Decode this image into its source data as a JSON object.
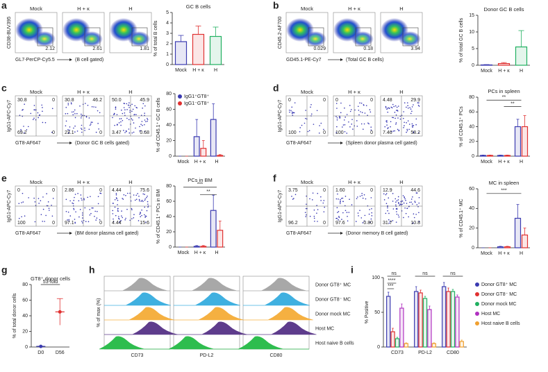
{
  "panels": {
    "a": {
      "label": "a",
      "flow": {
        "kind": "density",
        "ylabel": "CD38-BUV395",
        "xlabel": "GL7-PerCP-Cy5.5",
        "gate_note": "(B cell gated)",
        "plots": [
          {
            "title": "Mock",
            "gates": [
              "2.12"
            ]
          },
          {
            "title": "H + κ",
            "gates": [
              "2.61"
            ]
          },
          {
            "title": "H",
            "gates": [
              "1.81"
            ]
          }
        ]
      },
      "chart": {
        "title": "GC B cells",
        "ylabel": "% of total B cells",
        "categories": [
          "Mock",
          "H + κ",
          "H"
        ],
        "series": [
          {
            "values": [
              2.2,
              2.9,
              2.7
            ],
            "errors": [
              0.6,
              0.8,
              0.9
            ],
            "colors": [
              "#3a3ab0",
              "#e03030",
              "#20b060"
            ]
          }
        ],
        "ylim": [
          0,
          5
        ],
        "yticks": [
          0,
          1,
          2,
          3,
          4,
          5
        ],
        "annotations": []
      }
    },
    "b": {
      "label": "b",
      "flow": {
        "kind": "density",
        "ylabel": "CD45.2-AF700",
        "xlabel": "GD45.1-PE-Cy7",
        "gate_note": "(Total GC B cells)",
        "plots": [
          {
            "title": "Mock",
            "gates": [
              "0.029"
            ]
          },
          {
            "title": "H + κ",
            "gates": [
              "0.18"
            ]
          },
          {
            "title": "H",
            "gates": [
              "3.94"
            ]
          }
        ]
      },
      "chart": {
        "title": "Donor GC B cells",
        "ylabel": "% of total GC B cells",
        "categories": [
          "Mock",
          "H + κ",
          "H"
        ],
        "series": [
          {
            "values": [
              0.1,
              0.5,
              5.5
            ],
            "errors": [
              0.1,
              0.3,
              4.9
            ],
            "colors": [
              "#3a3ab0",
              "#e03030",
              "#20b060"
            ]
          }
        ],
        "ylim": [
          0,
          15
        ],
        "yticks": [
          0,
          5,
          10,
          15
        ],
        "annotations": []
      }
    },
    "c": {
      "label": "c",
      "flow": {
        "kind": "quad",
        "ylabel": "IgG1-AFC-Cy7",
        "xlabel": "GT8-AF647",
        "gate_note": "(Donor GC B cells gated)",
        "plots": [
          {
            "title": "Mock",
            "gates": [
              "30.8",
              "0",
              "69.2",
              "0"
            ]
          },
          {
            "title": "H + κ",
            "gates": [
              "30.8",
              "46.2",
              "23.1",
              "0"
            ]
          },
          {
            "title": "H",
            "gates": [
              "50.0",
              "45.9",
              "3.47",
              "0.68"
            ]
          }
        ]
      },
      "chart": {
        "ylabel": "% of CD45.1⁺ GC B cells",
        "categories": [
          "Mock",
          "H + κ",
          "H"
        ],
        "series": [
          {
            "name": "IgG1⁺GT8⁺",
            "color": "#3a3ab0",
            "values": [
              0,
              25,
              47
            ],
            "errors": [
              0,
              22,
              20
            ]
          },
          {
            "name": "IgG1⁻GT8⁺",
            "color": "#e03030",
            "values": [
              0,
              10,
              1
            ],
            "errors": [
              0,
              10,
              1
            ]
          }
        ],
        "ylim": [
          0,
          80
        ],
        "yticks": [
          0,
          20,
          40,
          60,
          80
        ],
        "annotations": []
      }
    },
    "d": {
      "label": "d",
      "flow": {
        "kind": "quad",
        "ylabel": "IgG1-APC-Cy7",
        "xlabel": "GT8-AF647",
        "gate_note": "(Spleen donor plasma cell gated)",
        "plots": [
          {
            "title": "Mock",
            "gates": [
              "0",
              "0",
              "100",
              "0"
            ]
          },
          {
            "title": "H + κ",
            "gates": [
              "0",
              "0",
              "100",
              "0"
            ]
          },
          {
            "title": "H",
            "gates": [
              "4.48",
              "29.9",
              "7.46",
              "58.2"
            ]
          }
        ]
      },
      "chart": {
        "title": "PCs in spleen",
        "ylabel": "% of CD45.1⁺ PCs",
        "categories": [
          "Mock",
          "H + κ",
          "H"
        ],
        "series": [
          {
            "color": "#3a3ab0",
            "values": [
              1,
              1,
              40
            ],
            "errors": [
              0.5,
              0.5,
              10
            ]
          },
          {
            "color": "#e03030",
            "values": [
              1,
              1,
              40
            ],
            "errors": [
              0.5,
              0.5,
              15
            ]
          }
        ],
        "ylim": [
          0,
          80
        ],
        "yticks": [
          0,
          20,
          40,
          60,
          80
        ],
        "annotations": [
          "**",
          "**"
        ]
      }
    },
    "e": {
      "label": "e",
      "flow": {
        "kind": "quad",
        "ylabel": "IgG1-APC-Cy7",
        "xlabel": "GT8-AF647",
        "gate_note": "(BM donor plasma cell gated)",
        "plots": [
          {
            "title": "Mock",
            "gates": [
              "0",
              "0",
              "100",
              "0"
            ]
          },
          {
            "title": "H + κ",
            "gates": [
              "2.86",
              "0",
              "97.1",
              "0"
            ]
          },
          {
            "title": "H",
            "gates": [
              "4.44",
              "75.6",
              "4.44",
              "15.6"
            ]
          }
        ]
      },
      "chart": {
        "title": "PCs in BM",
        "ylabel": "% of CD45.1⁺ PCs in BM",
        "categories": [
          "Mock",
          "H + κ",
          "H"
        ],
        "series": [
          {
            "color": "#3a3ab0",
            "values": [
              0,
              1,
              48
            ],
            "errors": [
              0,
              1,
              20
            ]
          },
          {
            "color": "#e03030",
            "values": [
              0,
              1,
              22
            ],
            "errors": [
              0,
              1,
              12
            ]
          }
        ],
        "ylim": [
          0,
          80
        ],
        "yticks": [
          0,
          20,
          40,
          60,
          80
        ],
        "annotations": [
          "***",
          "**"
        ]
      }
    },
    "f": {
      "label": "f",
      "flow": {
        "kind": "quad",
        "ylabel": "IgG1-APC-Cy7",
        "xlabel": "GT8-AF647",
        "gate_note": "(Donor memory B cell gated)",
        "plots": [
          {
            "title": "Mock",
            "gates": [
              "3.75",
              "0",
              "96.2",
              "0"
            ]
          },
          {
            "title": "H + κ",
            "gates": [
              "1.60",
              "0",
              "97.6",
              "0.80"
            ]
          },
          {
            "title": "H",
            "gates": [
              "12.9",
              "44.6",
              "31.7",
              "10.8"
            ]
          }
        ]
      },
      "chart": {
        "title": "MC in spleen",
        "ylabel": "% of CD45.1⁺ MC",
        "categories": [
          "Mock",
          "H + κ",
          "H"
        ],
        "series": [
          {
            "color": "#3a3ab0",
            "values": [
              0,
              1,
              30
            ],
            "errors": [
              0,
              0.5,
              14
            ]
          },
          {
            "color": "#e03030",
            "values": [
              0,
              1,
              13
            ],
            "errors": [
              0,
              0.5,
              7
            ]
          }
        ],
        "ylim": [
          0,
          60
        ],
        "yticks": [
          0,
          20,
          40,
          60
        ],
        "annotations": [
          "***"
        ]
      }
    },
    "g": {
      "label": "g",
      "chart": {
        "title": "GT8⁺ donor cells",
        "ylabel": "% of total donor cells",
        "categories": [
          "D0",
          "D56"
        ],
        "series": [
          {
            "values": [
              0.8,
              45
            ],
            "errors": [
              0.3,
              17
            ],
            "colors": [
              "#3a3ab0",
              "#e03030"
            ],
            "points": true
          }
        ],
        "ylim": [
          0,
          80
        ],
        "yticks": [
          0,
          20,
          40,
          60,
          80
        ],
        "annotations": [
          "53-fold"
        ]
      }
    },
    "h": {
      "label": "h",
      "ylabel": "% of max (%)",
      "columns": [
        "CD73",
        "PD-L2",
        "CD80"
      ],
      "rows": [
        {
          "name": "Donor GT8⁺ MC",
          "color": "#a8a8a8"
        },
        {
          "name": "Donor GT8⁻ MC",
          "color": "#3fb0e0"
        },
        {
          "name": "Donor mock MC",
          "color": "#f5b041"
        },
        {
          "name": "Host MC",
          "color": "#5e3c8c"
        },
        {
          "name": "Host naive B cells",
          "color": "#2ebd4e"
        }
      ]
    },
    "i": {
      "label": "i",
      "chart": {
        "ylabel": "% Positive",
        "categories": [
          "CD73",
          "PD-L2",
          "CD80"
        ],
        "series": [
          {
            "name": "Donor GT8⁺ MC",
            "color": "#3a3ab0",
            "values": [
              73,
              80,
              87
            ],
            "errors": [
              6,
              7,
              6
            ]
          },
          {
            "name": "Donor GT8⁻ MC",
            "color": "#e03030",
            "values": [
              22,
              78,
              80
            ],
            "errors": [
              5,
              4,
              5
            ]
          },
          {
            "name": "Donor mock MC",
            "color": "#20b060",
            "values": [
              12,
              70,
              80
            ],
            "errors": [
              2,
              3,
              3
            ]
          },
          {
            "name": "Host MC",
            "color": "#b030c0",
            "values": [
              56,
              54,
              72
            ],
            "errors": [
              6,
              5,
              3
            ]
          },
          {
            "name": "Host naive B cells",
            "color": "#f0a030",
            "values": [
              5,
              5,
              8
            ],
            "errors": [
              1,
              1,
              2
            ]
          }
        ],
        "ylim": [
          0,
          100
        ],
        "yticks": [
          0,
          50,
          100
        ],
        "annotations": [
          "ns",
          "****",
          "***",
          "ns",
          "ns"
        ]
      }
    }
  }
}
